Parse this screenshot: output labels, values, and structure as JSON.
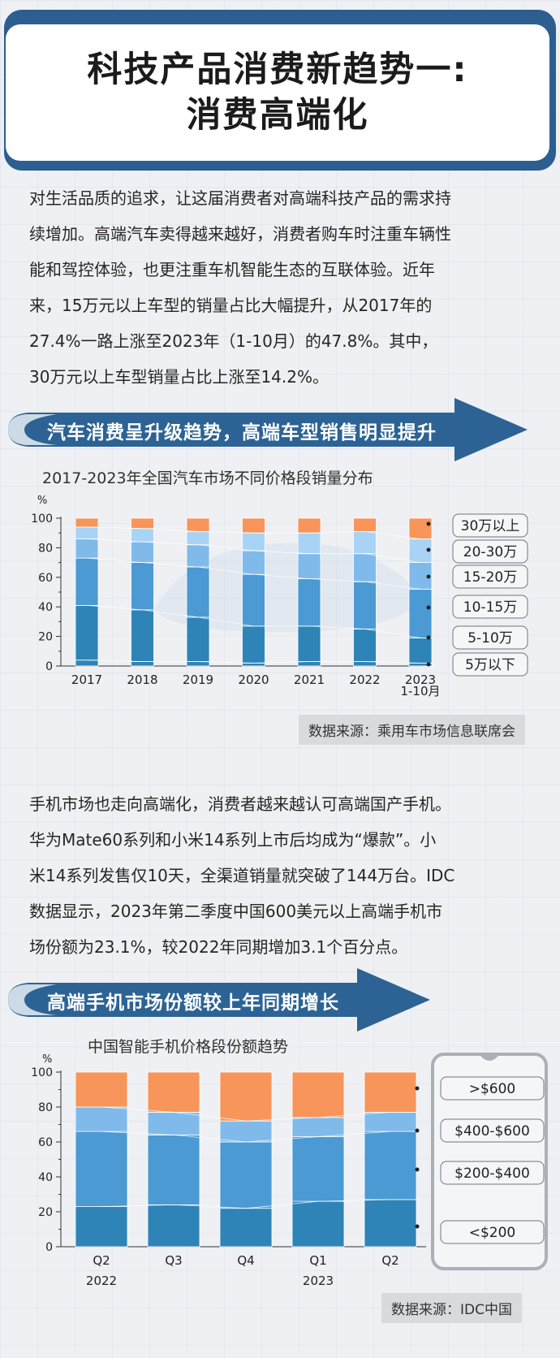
{
  "header": {
    "title_line1": "科技产品消费新趋势一:",
    "title_line2": "消费高端化"
  },
  "para1": [
    "对生活品质的追求，让这届消费者对高端科技产品的需求持",
    "续增加。高端汽车卖得越来越好，消费者购车时注重车辆性",
    "能和驾控体验，也更注重车机智能生态的互联体验。近年",
    "来，15万元以上车型的销量占比大幅提升，从2017年的",
    "27.4%一路上涨至2023年（1-10月）的47.8%。其中，",
    "30万元以上车型销量占比上涨至14.2%。"
  ],
  "banner1": "汽车消费呈升级趋势，高端车型销售明显提升",
  "source1": "数据来源：乘用车市场信息联席会",
  "para2": [
    "手机市场也走向高端化，消费者越来越认可高端国产手机。",
    "华为Mate60系列和小米14系列上市后均成为“爆款”。小",
    "米14系列发售仅10天，全渠道销量就突破了144万台。IDC",
    "数据显示，2023年第二季度中国600美元以上高端手机市",
    "场份额为23.1%，较2022年同期增加3.1个百分点。"
  ],
  "banner2": "高端手机市场份额较上年同期增长",
  "source2": "数据来源：IDC中国",
  "colors": {
    "dark_blue": "#2e84b7",
    "mid_blue": "#4b9ad3",
    "light_blue": "#80baeb",
    "pale_blue": "#a9d3f5",
    "whitish": "#eaf1f8",
    "orange": "#f7955a",
    "banner_blue": "#2c6394"
  },
  "chart_data": [
    {
      "type": "bar",
      "title": "2017-2023年全国汽车市场不同价格段销量分布",
      "ylabel": "%",
      "ylim": [
        0,
        100
      ],
      "yticks": [
        "0",
        "20",
        "40",
        "60",
        "80",
        "100"
      ],
      "categories": [
        "2017",
        "2018",
        "2019",
        "2020",
        "2021",
        "2022",
        "2023"
      ],
      "category_sublabels": [
        "",
        "",
        "",
        "",
        "",
        "",
        "1-10月"
      ],
      "series": [
        {
          "name": "5万以下",
          "color": "#2e84b7",
          "values": [
            4,
            3,
            3,
            2,
            3,
            3,
            2
          ]
        },
        {
          "name": "5-10万",
          "color": "#2e84b7",
          "values": [
            37,
            35,
            30,
            25,
            24,
            22,
            17
          ]
        },
        {
          "name": "10-15万",
          "color": "#4b9ad3",
          "values": [
            32,
            32,
            34,
            35,
            32,
            32,
            33
          ]
        },
        {
          "name": "15-20万",
          "color": "#80baeb",
          "values": [
            13,
            14,
            15,
            16,
            17,
            19,
            18
          ]
        },
        {
          "name": "20-30万",
          "color": "#a9d3f5",
          "values": [
            8,
            9,
            9,
            12,
            14,
            15,
            16
          ]
        },
        {
          "name": "30万以上",
          "color": "#f7955a",
          "values": [
            6,
            7,
            9,
            10,
            10,
            9,
            14
          ]
        }
      ],
      "legend": "right"
    },
    {
      "type": "bar",
      "title": "中国智能手机价格段份额趋势",
      "ylabel": "%",
      "ylim": [
        0,
        100
      ],
      "yticks": [
        "0",
        "20",
        "40",
        "60",
        "80",
        "100"
      ],
      "categories": [
        "Q2",
        "Q3",
        "Q4",
        "Q1",
        "Q2"
      ],
      "year_labels": [
        "2022",
        "2023"
      ],
      "series": [
        {
          "name": "<$200",
          "color": "#2e84b7",
          "values": [
            23,
            24,
            22,
            26,
            27
          ]
        },
        {
          "name": "$200-$400",
          "color": "#4b9ad3",
          "values": [
            43,
            40,
            38,
            37,
            39
          ]
        },
        {
          "name": "$400-$600",
          "color": "#80baeb",
          "values": [
            14,
            13,
            12,
            11,
            11
          ]
        },
        {
          "name": ">$600",
          "color": "#f7955a",
          "values": [
            20,
            23,
            28,
            26,
            23
          ]
        }
      ],
      "legend": "right"
    }
  ]
}
